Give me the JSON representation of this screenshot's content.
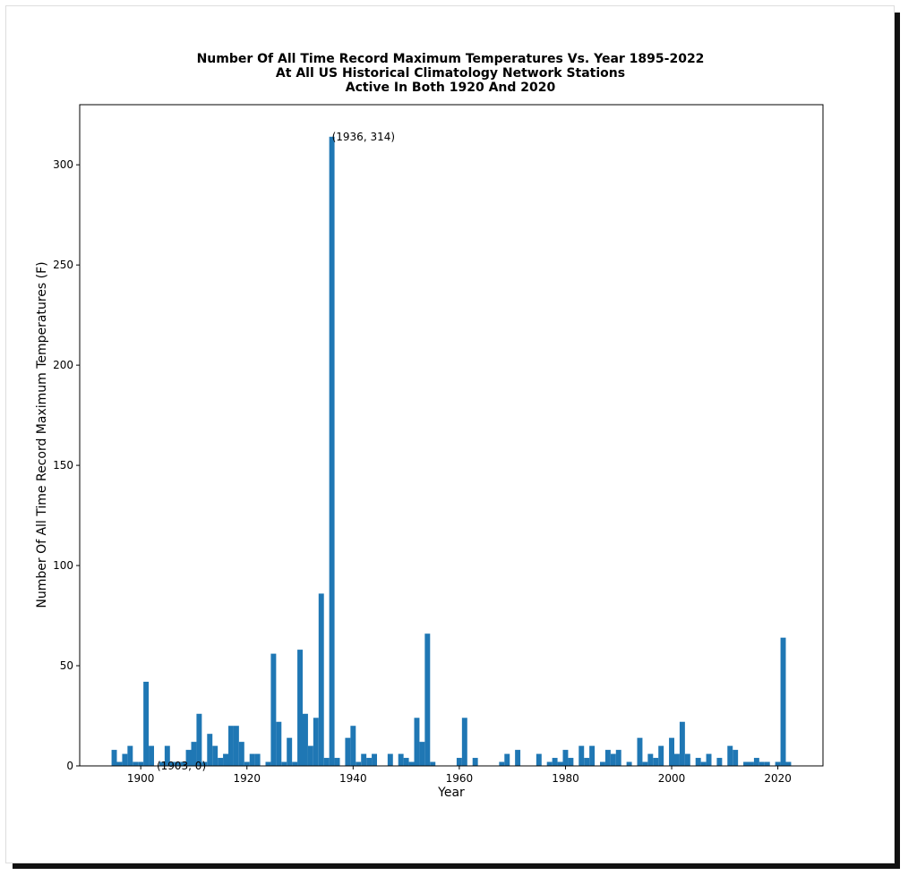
{
  "chart_data": {
    "type": "bar",
    "title_lines": [
      "Number Of All Time Record Maximum Temperatures Vs. Year 1895-2022",
      "At All US Historical Climatology Network Stations",
      "Active In Both 1920 And 2020"
    ],
    "xlabel": "Year",
    "ylabel": "Number Of All Time Record Maximum Temperatures (F)",
    "xlim": [
      1888.5,
      2028.5
    ],
    "ylim": [
      0,
      330
    ],
    "xticks": [
      1900,
      1920,
      1940,
      1960,
      1980,
      2000,
      2020
    ],
    "yticks": [
      0,
      50,
      100,
      150,
      200,
      250,
      300
    ],
    "grid": false,
    "color": "#1f77b4",
    "x": [
      1895,
      1896,
      1897,
      1898,
      1899,
      1900,
      1901,
      1902,
      1903,
      1904,
      1905,
      1906,
      1907,
      1908,
      1909,
      1910,
      1911,
      1912,
      1913,
      1914,
      1915,
      1916,
      1917,
      1918,
      1919,
      1920,
      1921,
      1922,
      1923,
      1924,
      1925,
      1926,
      1927,
      1928,
      1929,
      1930,
      1931,
      1932,
      1933,
      1934,
      1935,
      1936,
      1937,
      1938,
      1939,
      1940,
      1941,
      1942,
      1943,
      1944,
      1945,
      1946,
      1947,
      1948,
      1949,
      1950,
      1951,
      1952,
      1953,
      1954,
      1955,
      1956,
      1957,
      1958,
      1959,
      1960,
      1961,
      1962,
      1963,
      1964,
      1965,
      1966,
      1967,
      1968,
      1969,
      1970,
      1971,
      1972,
      1973,
      1974,
      1975,
      1976,
      1977,
      1978,
      1979,
      1980,
      1981,
      1982,
      1983,
      1984,
      1985,
      1986,
      1987,
      1988,
      1989,
      1990,
      1991,
      1992,
      1993,
      1994,
      1995,
      1996,
      1997,
      1998,
      1999,
      2000,
      2001,
      2002,
      2003,
      2004,
      2005,
      2006,
      2007,
      2008,
      2009,
      2010,
      2011,
      2012,
      2013,
      2014,
      2015,
      2016,
      2017,
      2018,
      2019,
      2020,
      2021,
      2022
    ],
    "values": [
      8,
      2,
      6,
      10,
      2,
      2,
      42,
      10,
      0,
      2,
      10,
      2,
      2,
      2,
      8,
      12,
      26,
      2,
      16,
      10,
      4,
      6,
      20,
      20,
      12,
      2,
      6,
      6,
      0,
      2,
      56,
      22,
      2,
      14,
      2,
      58,
      26,
      10,
      24,
      86,
      4,
      314,
      4,
      0,
      14,
      20,
      2,
      6,
      4,
      6,
      0,
      0,
      6,
      0,
      6,
      4,
      2,
      24,
      12,
      66,
      2,
      0,
      0,
      0,
      0,
      4,
      24,
      0,
      4,
      0,
      0,
      0,
      0,
      2,
      6,
      0,
      8,
      0,
      0,
      0,
      6,
      0,
      2,
      4,
      2,
      8,
      4,
      0,
      10,
      4,
      10,
      0,
      2,
      8,
      6,
      8,
      0,
      2,
      0,
      14,
      2,
      6,
      4,
      10,
      0,
      14,
      6,
      22,
      6,
      0,
      4,
      2,
      6,
      0,
      4,
      0,
      10,
      8,
      0,
      2,
      2,
      4,
      2,
      2,
      0,
      2,
      64,
      2
    ],
    "annotations": [
      {
        "text": "(1936, 314)",
        "x": 1936,
        "y": 314
      },
      {
        "text": "(1903, 0)",
        "x": 1903,
        "y": 0
      }
    ]
  }
}
